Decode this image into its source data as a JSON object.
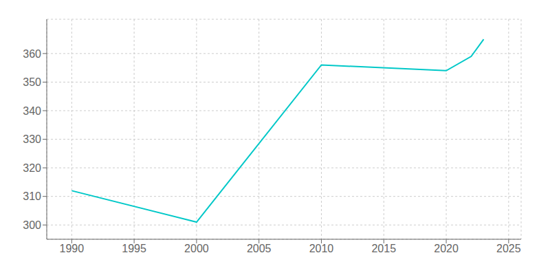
{
  "chart_data": {
    "type": "line",
    "x": [
      1990,
      2000,
      2010,
      2020,
      2022,
      2023
    ],
    "values": [
      312,
      301,
      356,
      354,
      359,
      365
    ],
    "color": "#00C8C8",
    "xlim": [
      1988,
      2026
    ],
    "ylim": [
      295,
      372
    ],
    "xticks": [
      1990,
      1995,
      2000,
      2005,
      2010,
      2015,
      2020,
      2025
    ],
    "yticks": [
      300,
      310,
      320,
      330,
      340,
      350,
      360
    ],
    "grid": true
  }
}
